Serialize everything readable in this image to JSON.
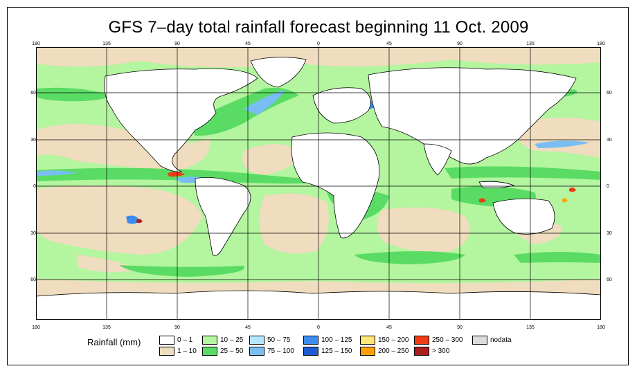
{
  "title": "GFS 7–day total rainfall forecast beginning 11 Oct. 2009",
  "axes": {
    "top_lon_labels": [
      "180",
      "135",
      "90",
      "45",
      "0",
      "45",
      "90",
      "135",
      "180"
    ],
    "bottom_lon_labels": [
      "180",
      "135",
      "90",
      "45",
      "0",
      "45",
      "90",
      "135",
      "180"
    ],
    "left_lat_labels": [
      "60",
      "30",
      "0",
      "30",
      "60"
    ],
    "right_lat_labels": [
      "60",
      "30",
      "0",
      "30",
      "60"
    ]
  },
  "legend": {
    "title": "Rainfall (mm)",
    "items": [
      {
        "label": "0 – 1",
        "color": "#ffffff"
      },
      {
        "label": "1 – 10",
        "color": "#f0dcbe"
      },
      {
        "label": "10 – 25",
        "color": "#b4f5a0"
      },
      {
        "label": "25 – 50",
        "color": "#5adc64"
      },
      {
        "label": "50 – 75",
        "color": "#b4e6ff"
      },
      {
        "label": "75 – 100",
        "color": "#78bef5"
      },
      {
        "label": "100 – 125",
        "color": "#3c8cf0"
      },
      {
        "label": "125 – 150",
        "color": "#1e5ad2"
      },
      {
        "label": "150 – 200",
        "color": "#ffe678"
      },
      {
        "label": "200 – 250",
        "color": "#ffa000"
      },
      {
        "label": "250 – 300",
        "color": "#f03c14"
      },
      {
        "label": "> 300",
        "color": "#aa1e1e"
      },
      {
        "label": "nodata",
        "color": "#dcdcdc"
      }
    ]
  },
  "colors": {
    "ocean_base": "#b4f5a0",
    "dry": "#f0dcbe",
    "land": "#ffffff",
    "grid": "#000000"
  }
}
